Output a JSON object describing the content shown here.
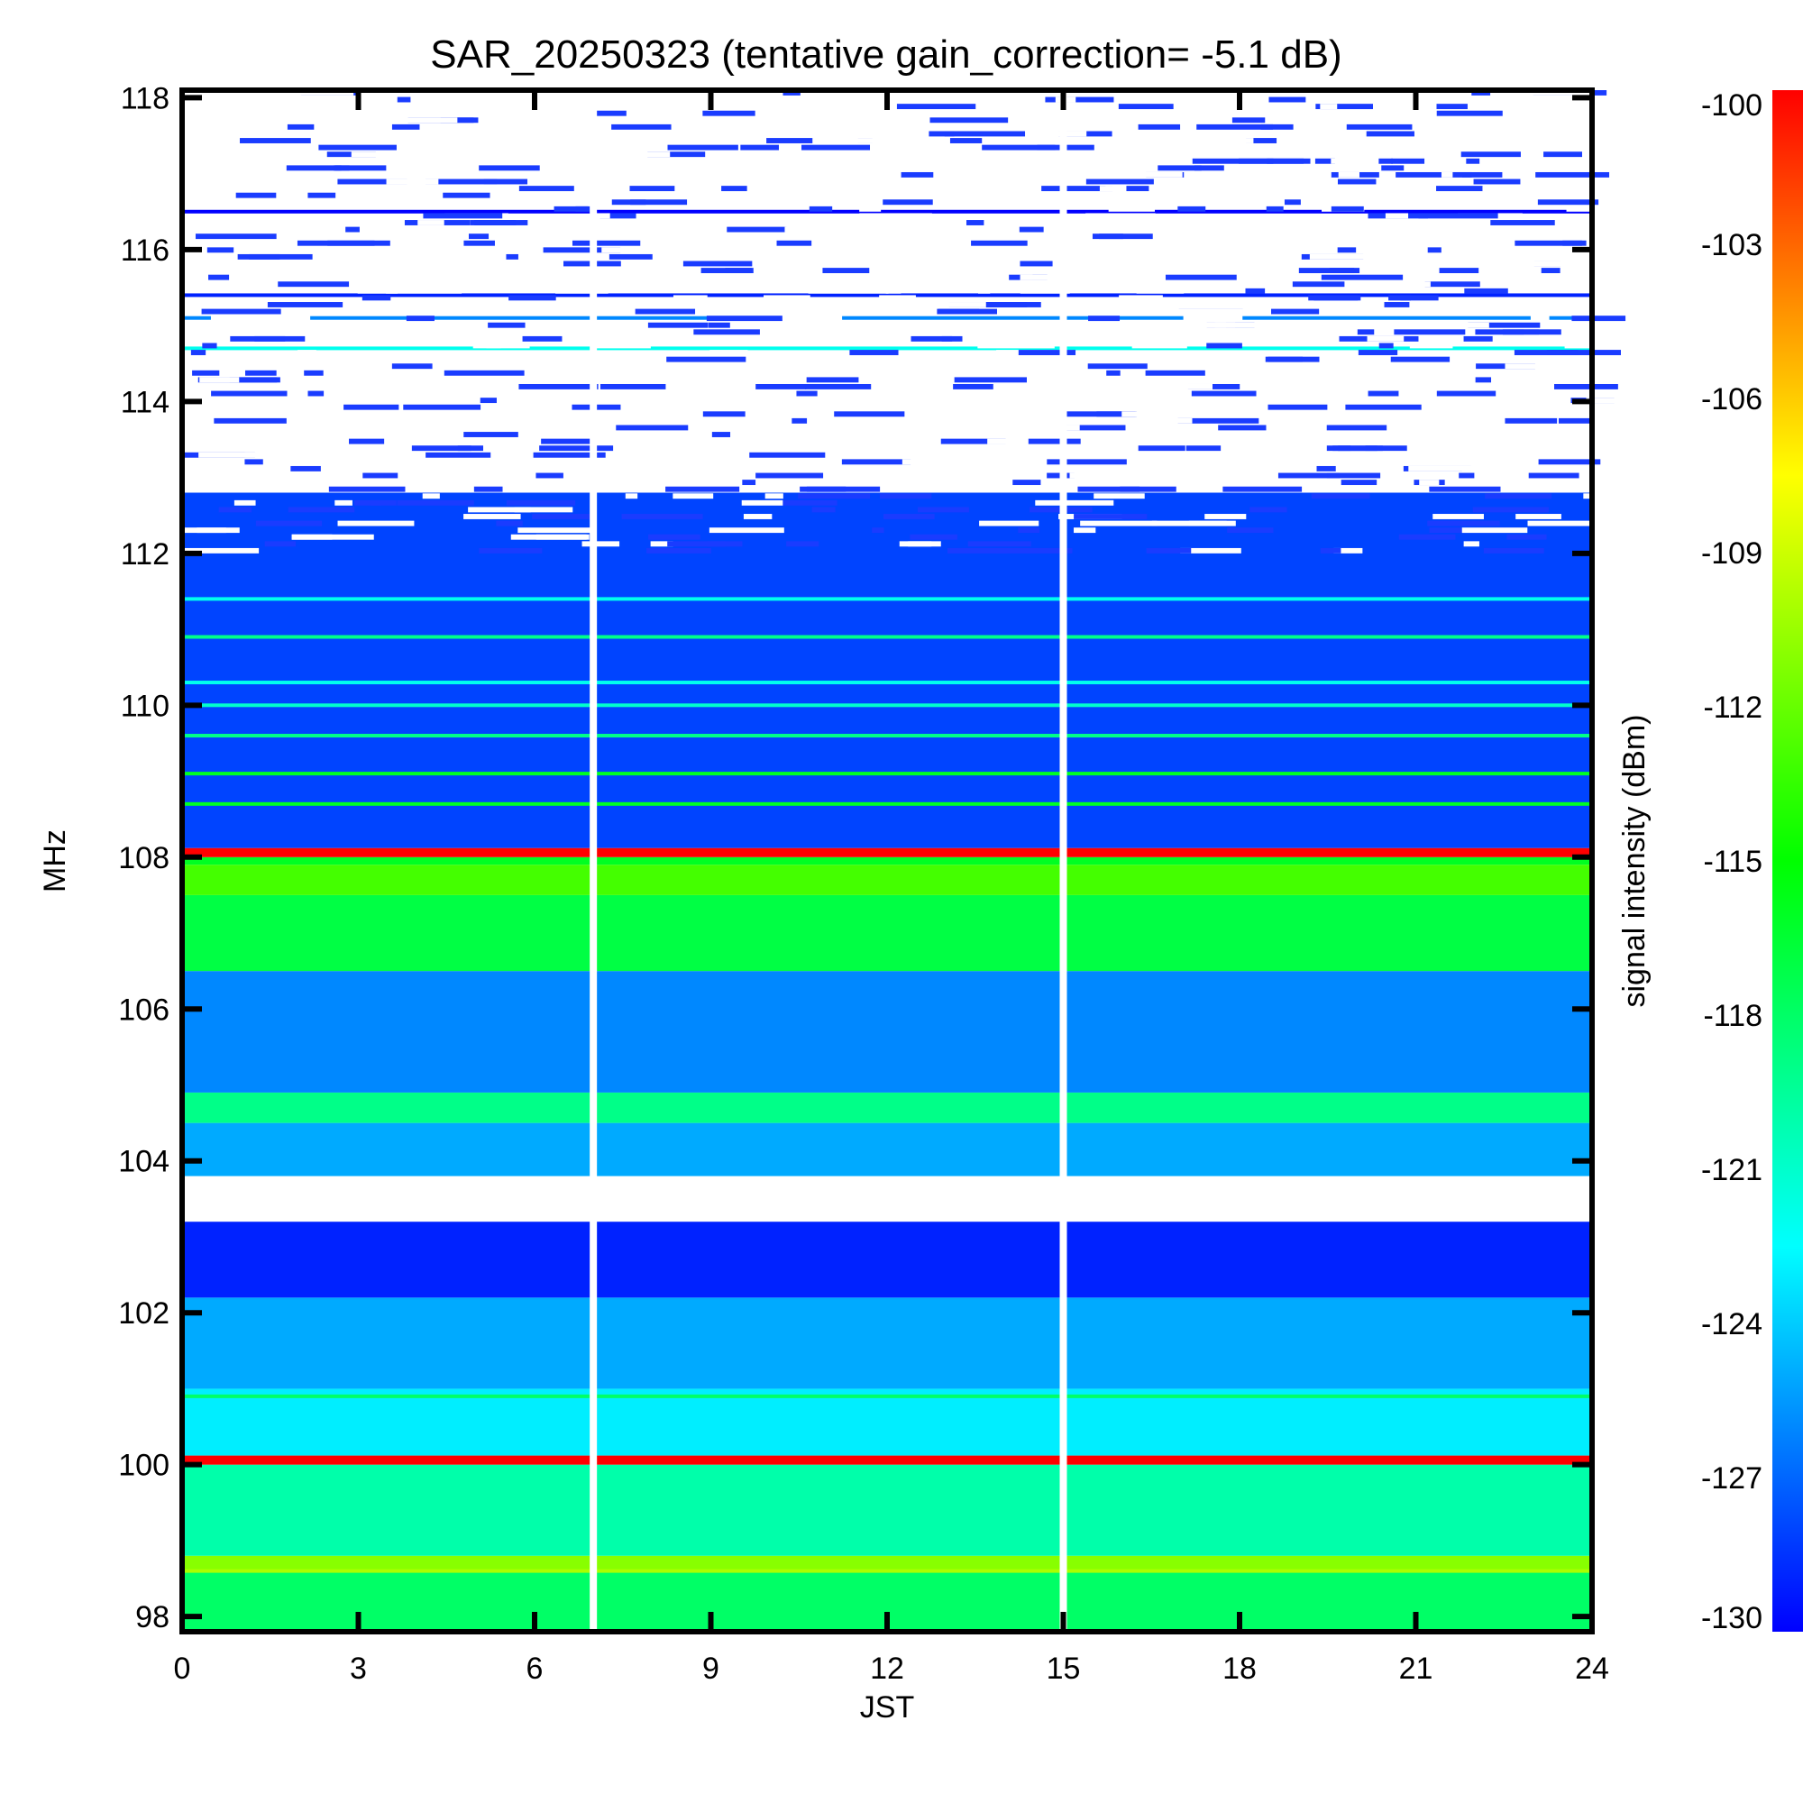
{
  "chart_data": {
    "type": "heatmap",
    "title": "SAR_20250323 (tentative gain_correction= -5.1 dB)",
    "xlabel": "JST",
    "ylabel": "MHz",
    "colorbar_label": "signal intensity (dBm)",
    "xlim": [
      0,
      24
    ],
    "ylim": [
      97.8,
      118.1
    ],
    "clim": [
      -130,
      -100
    ],
    "x_ticks": [
      0,
      3,
      6,
      9,
      12,
      15,
      18,
      21,
      24
    ],
    "x_tick_labels": [
      "0",
      "3",
      "6",
      "9",
      "12",
      "15",
      "18",
      "21",
      "24"
    ],
    "y_ticks": [
      98,
      100,
      102,
      104,
      106,
      108,
      110,
      112,
      114,
      116,
      118
    ],
    "y_tick_labels": [
      "98",
      "100",
      "102",
      "104",
      "106",
      "108",
      "110",
      "112",
      "114",
      "116",
      "118"
    ],
    "colorbar_ticks": [
      -100,
      -103,
      -106,
      -109,
      -112,
      -115,
      -118,
      -121,
      -124,
      -127,
      -130
    ],
    "colorbar_tick_labels": [
      "-100",
      "-103",
      "-106",
      "-109",
      "-112",
      "-115",
      "-118",
      "-121",
      "-124",
      "-127",
      "-130"
    ],
    "colormap": [
      "#0000ff",
      "#0080ff",
      "#00ffff",
      "#00ff80",
      "#00ff00",
      "#80ff00",
      "#ffff00",
      "#ff8000",
      "#ff0000"
    ],
    "no_data_time_gaps_jst": [
      7.0,
      15.0
    ],
    "approx_band_levels_dbm": [
      {
        "from_mhz": 97.8,
        "to_mhz": 98.6,
        "level": -118
      },
      {
        "from_mhz": 98.6,
        "to_mhz": 98.8,
        "level": -111
      },
      {
        "from_mhz": 98.8,
        "to_mhz": 100.0,
        "level": -120
      },
      {
        "from_mhz": 100.0,
        "to_mhz": 100.12,
        "level": -100
      },
      {
        "from_mhz": 100.12,
        "to_mhz": 101.0,
        "level": -123
      },
      {
        "from_mhz": 101.0,
        "to_mhz": 102.2,
        "level": -125
      },
      {
        "from_mhz": 102.2,
        "to_mhz": 103.2,
        "level": -129
      },
      {
        "from_mhz": 103.2,
        "to_mhz": 103.8,
        "level": -131
      },
      {
        "from_mhz": 103.8,
        "to_mhz": 104.5,
        "level": -125
      },
      {
        "from_mhz": 104.5,
        "to_mhz": 104.9,
        "level": -119
      },
      {
        "from_mhz": 104.9,
        "to_mhz": 106.5,
        "level": -126
      },
      {
        "from_mhz": 106.5,
        "to_mhz": 107.5,
        "level": -117
      },
      {
        "from_mhz": 107.5,
        "to_mhz": 107.9,
        "level": -113
      },
      {
        "from_mhz": 107.9,
        "to_mhz": 108.0,
        "level": -116
      },
      {
        "from_mhz": 108.0,
        "to_mhz": 108.12,
        "level": -100
      },
      {
        "from_mhz": 108.12,
        "to_mhz": 112.8,
        "level": -128
      },
      {
        "from_mhz": 112.8,
        "to_mhz": 118.1,
        "level": -131
      }
    ],
    "approx_narrow_lines": [
      {
        "freq_mhz": 98.6,
        "level": -110
      },
      {
        "freq_mhz": 100.9,
        "level": -118
      },
      {
        "freq_mhz": 108.7,
        "level": -116
      },
      {
        "freq_mhz": 109.1,
        "level": -116
      },
      {
        "freq_mhz": 109.6,
        "level": -119
      },
      {
        "freq_mhz": 110.0,
        "level": -121
      },
      {
        "freq_mhz": 110.3,
        "level": -122
      },
      {
        "freq_mhz": 110.9,
        "level": -119
      },
      {
        "freq_mhz": 111.4,
        "level": -122
      },
      {
        "freq_mhz": 114.7,
        "level": -122
      },
      {
        "freq_mhz": 115.1,
        "level": -126
      },
      {
        "freq_mhz": 115.4,
        "level": -129
      },
      {
        "freq_mhz": 116.5,
        "level": -130
      }
    ]
  }
}
